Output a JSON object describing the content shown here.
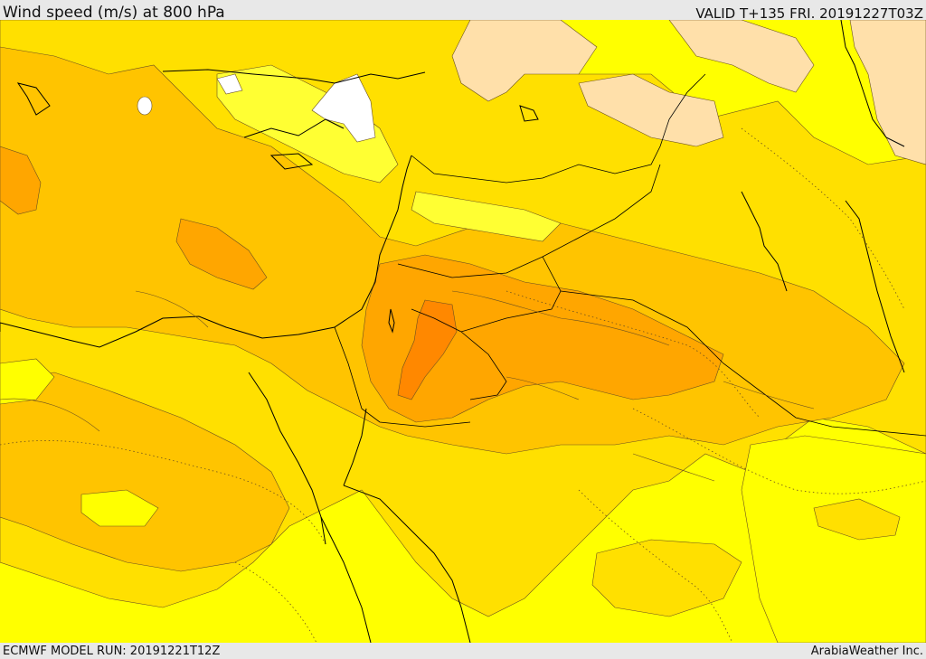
{
  "header": {
    "title": "Wind speed (m/s) at 800 hPa",
    "valid": "VALID T+135 FRI. 20191227T03Z"
  },
  "footer": {
    "model_run": "ECMWF MODEL RUN: 20191221T12Z",
    "provider": "ArabiaWeather Inc."
  },
  "colors": {
    "calm": "#ffffff",
    "light": "#ffe0aa",
    "pale_yellow": "#ffff33",
    "yellow": "#ffff00",
    "gold": "#ffe000",
    "amber": "#ffc400",
    "orange": "#ffa600",
    "dark_orange": "#ff8800",
    "contour": "#5a4020",
    "border": "#000000"
  }
}
